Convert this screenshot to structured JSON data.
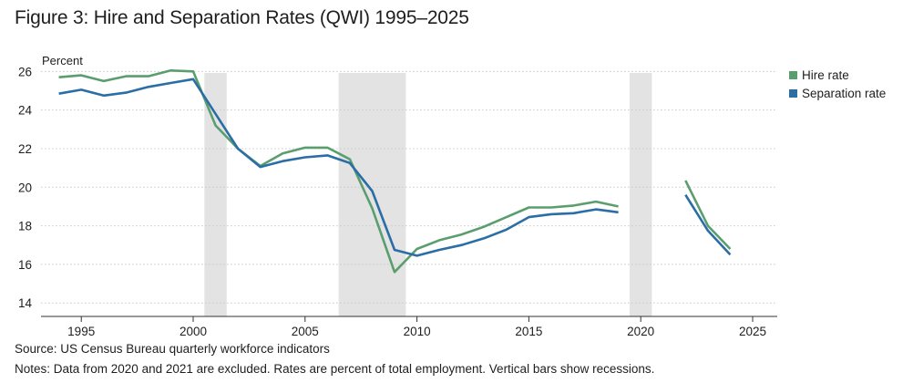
{
  "figure": {
    "title": "Figure 3: Hire and Separation Rates (QWI) 1995–2025",
    "source": "Source: US Census Bureau quarterly workforce indicators",
    "notes": "Notes: Data from 2020 and 2021 are excluded. Rates are percent of total employment. Vertical bars show recessions."
  },
  "chart_data": {
    "type": "line",
    "ylabel": "Percent",
    "xlabel": "",
    "xlim": [
      1993.2,
      2026.1
    ],
    "ylim": [
      13.3,
      26.3
    ],
    "xticks": [
      1995,
      2000,
      2005,
      2010,
      2015,
      2020,
      2025
    ],
    "yticks": [
      14,
      16,
      18,
      20,
      22,
      24,
      26
    ],
    "grid": "horizontal dotted",
    "legend_placement": "top-right outside",
    "recessions": [
      [
        2000.5,
        2001.5
      ],
      [
        2006.5,
        2009.5
      ],
      [
        2019.5,
        2020.5
      ]
    ],
    "series": [
      {
        "name": "Hire rate",
        "color": "#5b9e6e",
        "segments": [
          [
            [
              1994,
              25.7
            ],
            [
              1995,
              25.8
            ],
            [
              1996,
              25.5
            ],
            [
              1997,
              25.75
            ],
            [
              1998,
              25.75
            ],
            [
              1999,
              26.05
            ],
            [
              2000,
              26.0
            ],
            [
              2001,
              23.2
            ],
            [
              2002,
              22.0
            ],
            [
              2003,
              21.1
            ],
            [
              2004,
              21.75
            ],
            [
              2005,
              22.05
            ],
            [
              2006,
              22.05
            ],
            [
              2007,
              21.45
            ],
            [
              2008,
              18.9
            ],
            [
              2009,
              15.6
            ],
            [
              2010,
              16.8
            ],
            [
              2011,
              17.25
            ],
            [
              2012,
              17.55
            ],
            [
              2013,
              17.95
            ],
            [
              2014,
              18.45
            ],
            [
              2015,
              18.95
            ],
            [
              2016,
              18.95
            ],
            [
              2017,
              19.05
            ],
            [
              2018,
              19.25
            ],
            [
              2019,
              19.0
            ]
          ],
          [
            [
              2022,
              20.35
            ],
            [
              2023,
              18.0
            ],
            [
              2024,
              16.8
            ]
          ]
        ]
      },
      {
        "name": "Separation rate",
        "color": "#2a6ea5",
        "segments": [
          [
            [
              1994,
              24.85
            ],
            [
              1995,
              25.05
            ],
            [
              1996,
              24.75
            ],
            [
              1997,
              24.9
            ],
            [
              1998,
              25.2
            ],
            [
              1999,
              25.4
            ],
            [
              2000,
              25.6
            ],
            [
              2001,
              23.8
            ],
            [
              2002,
              22.0
            ],
            [
              2003,
              21.05
            ],
            [
              2004,
              21.35
            ],
            [
              2005,
              21.55
            ],
            [
              2006,
              21.65
            ],
            [
              2007,
              21.25
            ],
            [
              2008,
              19.8
            ],
            [
              2009,
              16.75
            ],
            [
              2010,
              16.45
            ],
            [
              2011,
              16.75
            ],
            [
              2012,
              17.0
            ],
            [
              2013,
              17.35
            ],
            [
              2014,
              17.8
            ],
            [
              2015,
              18.45
            ],
            [
              2016,
              18.6
            ],
            [
              2017,
              18.65
            ],
            [
              2018,
              18.85
            ],
            [
              2019,
              18.7
            ]
          ],
          [
            [
              2022,
              19.6
            ],
            [
              2023,
              17.75
            ],
            [
              2024,
              16.5
            ]
          ]
        ]
      }
    ]
  }
}
